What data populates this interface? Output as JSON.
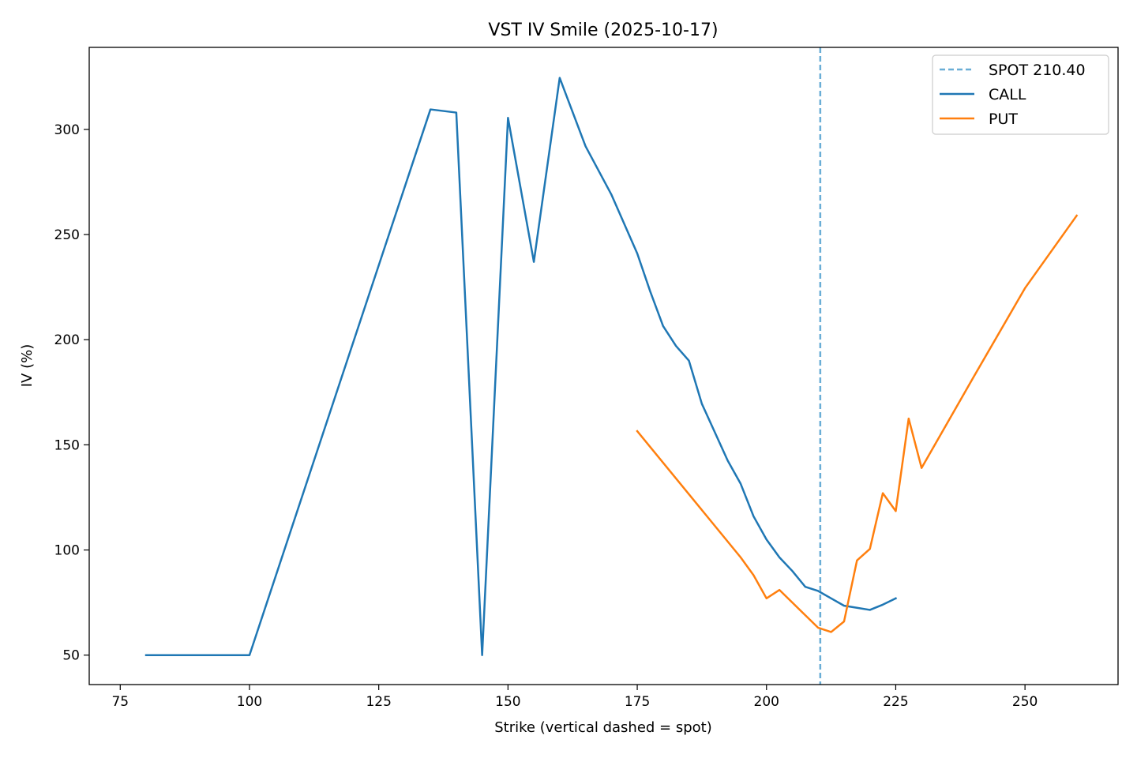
{
  "chart_data": {
    "type": "line",
    "title": "VST IV Smile (2025-10-17)",
    "xlabel": "Strike (vertical dashed = spot)",
    "ylabel": "IV (%)",
    "xlim": [
      69,
      268
    ],
    "ylim": [
      36,
      339
    ],
    "xticks": [
      75,
      100,
      125,
      150,
      175,
      200,
      225,
      250
    ],
    "yticks": [
      50,
      100,
      150,
      200,
      250,
      300
    ],
    "grid": false,
    "legend_position": "top-right",
    "spot": {
      "name": "SPOT 210.40",
      "value": 210.4,
      "color": "#6aaed6",
      "style": "dashed"
    },
    "series": [
      {
        "name": "CALL",
        "color": "#1f77b4",
        "x": [
          80,
          100,
          135,
          140,
          145,
          150,
          155,
          160,
          165,
          170,
          175,
          177.5,
          180,
          182.5,
          185,
          187.5,
          190,
          192.5,
          195,
          197.5,
          200,
          202.5,
          205,
          207.5,
          210,
          212.5,
          215,
          217.5,
          220,
          222.5,
          225
        ],
        "y": [
          50,
          50,
          309.5,
          308,
          50,
          305.5,
          237,
          324.5,
          292,
          269,
          241,
          223,
          206.5,
          197,
          190,
          169.5,
          156,
          142.5,
          131.5,
          116,
          105,
          96.5,
          90,
          82.5,
          80.5,
          77,
          73.5,
          72.5,
          71.5,
          74,
          77
        ]
      },
      {
        "name": "PUT",
        "color": "#ff7f0e",
        "x": [
          175,
          195,
          197.5,
          200,
          202.5,
          205,
          207.5,
          210,
          212.5,
          215,
          217.5,
          220,
          222.5,
          225,
          227.5,
          230,
          240,
          250,
          260
        ],
        "y": [
          156.5,
          96.5,
          88,
          77,
          81,
          75,
          69,
          63,
          61,
          66,
          95,
          100.5,
          127,
          118.5,
          162.5,
          139,
          182,
          224.5,
          259
        ]
      }
    ]
  }
}
